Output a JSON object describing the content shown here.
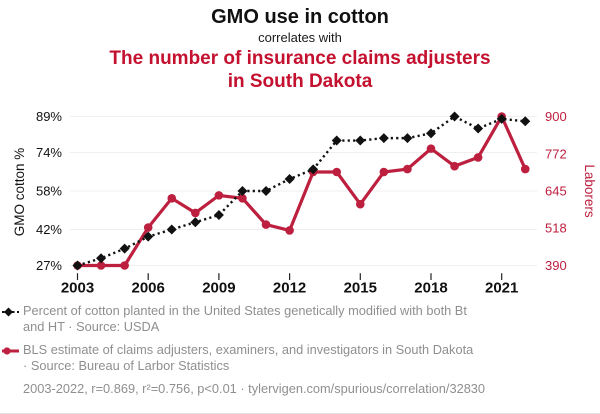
{
  "header": {
    "title": "GMO use in cotton",
    "subtitle": "correlates with",
    "correlated_title": "The number of insurance claims adjusters in South Dakota"
  },
  "chart_data": {
    "type": "line",
    "x": [
      2003,
      2004,
      2005,
      2006,
      2007,
      2008,
      2009,
      2010,
      2011,
      2012,
      2013,
      2014,
      2015,
      2016,
      2017,
      2018,
      2019,
      2020,
      2021,
      2022
    ],
    "x_ticks": [
      2003,
      2006,
      2009,
      2012,
      2015,
      2018,
      2021
    ],
    "series": [
      {
        "name": "gmo-cotton",
        "legend": "Percent of cotton planted in the United States genetically modified with both Bt and HT · Source: USDA",
        "color": "#111111",
        "style": "dashed-diamond",
        "axis": "left",
        "values": [
          27,
          30,
          34,
          39,
          42,
          45,
          48,
          58,
          58,
          63,
          67,
          79,
          79,
          80,
          80,
          82,
          89,
          84,
          88,
          87
        ]
      },
      {
        "name": "claims-adjusters",
        "legend": "BLS estimate of claims adjusters, examiners, and investigators in South Dakota · Source: Bureau of Larbor Statistics",
        "color": "#bd1f3e",
        "style": "solid-circle",
        "axis": "right",
        "values": [
          390,
          390,
          390,
          520,
          620,
          570,
          630,
          620,
          530,
          510,
          710,
          710,
          600,
          710,
          720,
          790,
          730,
          760,
          900,
          720
        ]
      }
    ],
    "left_axis": {
      "label": "GMO cotton %",
      "ticks": [
        "89%",
        "74%",
        "58%",
        "42%",
        "27%"
      ],
      "tick_values": [
        89,
        74,
        58,
        42,
        27
      ],
      "range": [
        27,
        89
      ],
      "color": "#111111"
    },
    "right_axis": {
      "label": "Laborers",
      "ticks": [
        "900",
        "772",
        "645",
        "518",
        "390"
      ],
      "tick_values": [
        900,
        772,
        645,
        518,
        390
      ],
      "range": [
        390,
        900
      ],
      "color": "#bd1f3e"
    },
    "grid": "horizontal",
    "legend_position": "bottom"
  },
  "footer": {
    "stats": "2003-2022, r=0.869, r²=0.756, p<0.01 · tylervigen.com/spurious/correlation/32830"
  },
  "colors": {
    "red_title": "#c4112f",
    "red_series": "#bd1f3e",
    "gray_text": "#8f8f8f",
    "grid": "#efefef",
    "black": "#111111",
    "tick_mark": "#222222"
  }
}
